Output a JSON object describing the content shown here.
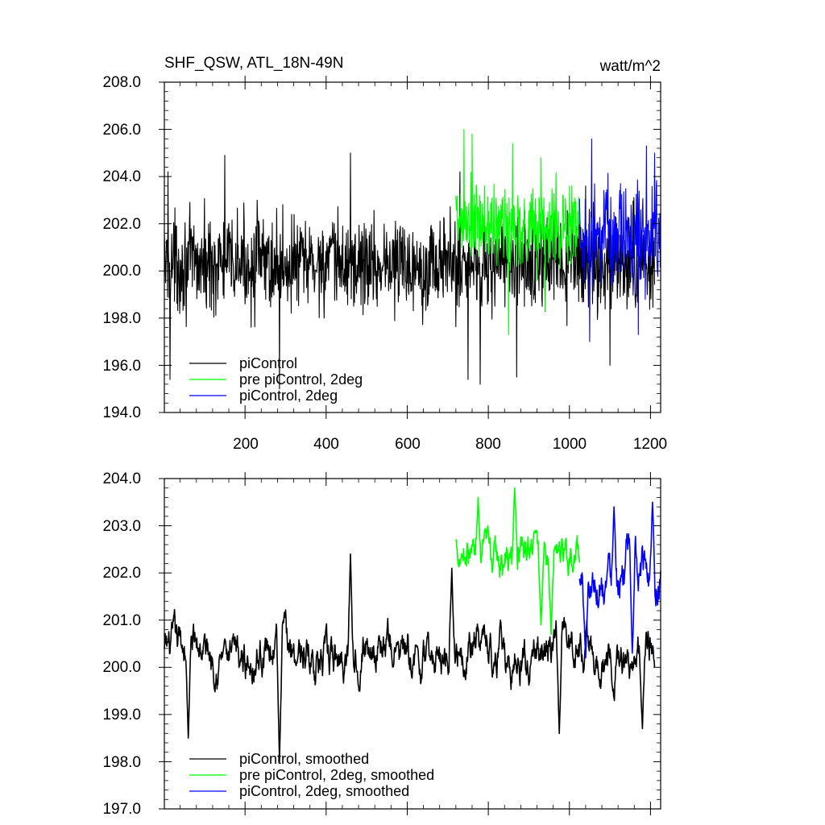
{
  "chart_data": [
    {
      "type": "line",
      "title": "SHF_QSW, ATL_18N-49N",
      "units": "watt/m^2",
      "xlim": [
        1,
        1225
      ],
      "ylim": [
        194.0,
        208.0
      ],
      "x_ticks": [
        200,
        400,
        600,
        800,
        1000,
        1200
      ],
      "x_tick_labels": [
        "200",
        "400",
        "600",
        "800",
        "1000",
        "1200"
      ],
      "y_ticks": [
        194.0,
        196.0,
        198.0,
        200.0,
        202.0,
        204.0,
        206.0,
        208.0
      ],
      "y_tick_labels": [
        "194.0",
        "196.0",
        "198.0",
        "200.0",
        "202.0",
        "204.0",
        "206.0",
        "208.0"
      ],
      "legend_position": "bottom-left",
      "series": [
        {
          "name": "piControl",
          "color": "#000000",
          "x_range": [
            1,
            1210
          ],
          "mean": 200.3,
          "amplitude": 1.6,
          "peaks": [
            [
              10,
              204.2
            ],
            [
              150,
              204.9
            ],
            [
              230,
              203.0
            ],
            [
              460,
              205.0
            ],
            [
              730,
              204.2
            ],
            [
              750,
              195.4
            ],
            [
              1040,
              203.6
            ]
          ],
          "troughs": [
            [
              15,
              195.4
            ],
            [
              285,
              195.0
            ],
            [
              780,
              195.2
            ],
            [
              870,
              195.5
            ],
            [
              1100,
              196.0
            ]
          ]
        },
        {
          "name": "pre piControl, 2deg",
          "color": "#00ff00",
          "x_range": [
            720,
            1025
          ],
          "mean": 201.9,
          "amplitude": 1.5,
          "peaks": [
            [
              740,
              206.0
            ],
            [
              760,
              205.8
            ],
            [
              860,
              205.4
            ],
            [
              930,
              204.8
            ]
          ],
          "troughs": [
            [
              850,
              197.3
            ],
            [
              940,
              198.3
            ]
          ]
        },
        {
          "name": "piControl, 2deg",
          "color": "#0000ff",
          "x_range": [
            1025,
            1225
          ],
          "mean": 201.5,
          "amplitude": 1.7,
          "peaks": [
            [
              1055,
              205.6
            ],
            [
              1190,
              205.3
            ],
            [
              1210,
              205.0
            ]
          ],
          "troughs": [
            [
              1050,
              197.0
            ],
            [
              1170,
              197.3
            ]
          ]
        }
      ]
    },
    {
      "type": "line",
      "xlim": [
        1,
        1225
      ],
      "ylim": [
        197.0,
        204.0
      ],
      "x_ticks": [
        200,
        400,
        600,
        800,
        1000,
        1200
      ],
      "y_ticks": [
        197.0,
        198.0,
        199.0,
        200.0,
        201.0,
        202.0,
        203.0,
        204.0
      ],
      "y_tick_labels": [
        "197.0",
        "198.0",
        "199.0",
        "200.0",
        "201.0",
        "202.0",
        "203.0",
        "204.0"
      ],
      "legend_position": "bottom-left",
      "series": [
        {
          "name": "piControl, smoothed",
          "color": "#000000",
          "x_range": [
            1,
            1210
          ],
          "mean": 200.3,
          "amplitude": 0.6,
          "peaks": [
            [
              150,
              200.6
            ],
            [
              460,
              202.4
            ],
            [
              710,
              202.1
            ],
            [
              830,
              201.0
            ]
          ],
          "troughs": [
            [
              60,
              198.5
            ],
            [
              285,
              198.0
            ],
            [
              975,
              198.6
            ],
            [
              1180,
              198.7
            ]
          ]
        },
        {
          "name": "pre piControl, 2deg, smoothed",
          "color": "#00ff00",
          "x_range": [
            720,
            1025
          ],
          "mean": 202.4,
          "amplitude": 0.55,
          "peaks": [
            [
              775,
              203.6
            ],
            [
              865,
              203.8
            ],
            [
              915,
              202.9
            ]
          ],
          "troughs": [
            [
              930,
              200.9
            ],
            [
              955,
              200.7
            ]
          ]
        },
        {
          "name": "piControl, 2deg, smoothed",
          "color": "#0000ff",
          "x_range": [
            1025,
            1225
          ],
          "mean": 202.0,
          "amplitude": 0.65,
          "peaks": [
            [
              1110,
              203.4
            ],
            [
              1205,
              203.5
            ]
          ],
          "troughs": [
            [
              1040,
              200.2
            ],
            [
              1155,
              200.3
            ]
          ]
        }
      ]
    }
  ]
}
